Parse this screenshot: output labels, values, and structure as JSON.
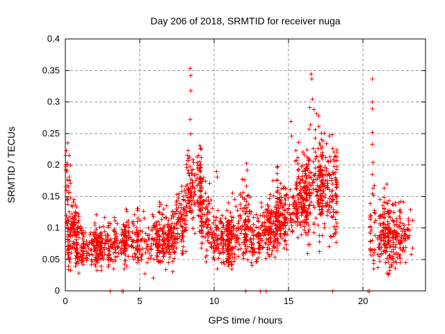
{
  "page": {
    "background": "#ffffff"
  },
  "chart_data": {
    "type": "scatter",
    "title": "Day 206 of 2018, SRMTID for receiver nuga",
    "xlabel": "GPS time / hours",
    "ylabel": "SRMTID / TECUs",
    "xlim": [
      0,
      24.2
    ],
    "ylim": [
      0,
      0.4
    ],
    "xticks": [
      [
        0,
        "0"
      ],
      [
        5,
        "5"
      ],
      [
        10,
        "10"
      ],
      [
        15,
        "15"
      ],
      [
        20,
        "20"
      ]
    ],
    "yticks": [
      [
        0,
        "0"
      ],
      [
        0.05,
        "0.05"
      ],
      [
        0.1,
        "0.1"
      ],
      [
        0.15,
        "0.15"
      ],
      [
        0.2,
        "0.2"
      ],
      [
        0.25,
        "0.25"
      ],
      [
        0.3,
        "0.3"
      ],
      [
        0.35,
        "0.35"
      ],
      [
        0.4,
        "0.4"
      ]
    ],
    "grid": true,
    "grid_color": "#999999",
    "axis_color": "#000000",
    "legend": "none",
    "marker": {
      "shape": "plus",
      "color": "#ff0000",
      "size": 7
    },
    "seed": 2018206,
    "clusters": [
      {
        "x": [
          0.0,
          0.38
        ],
        "n": 26,
        "y_mean": 0.17,
        "y_sd": 0.028,
        "y_min": 0.143,
        "y_max": 0.232,
        "columns": 1
      },
      {
        "x": [
          0.02,
          0.9
        ],
        "n": 70,
        "y_mean": 0.112,
        "y_sd": 0.016,
        "y_min": 0.082,
        "y_max": 0.148,
        "columns": 2
      },
      {
        "x": [
          0.1,
          3.2
        ],
        "n": 330,
        "y_mean": 0.071,
        "y_sd": 0.017,
        "y_min": 0.028,
        "y_max": 0.13,
        "columns": 6
      },
      {
        "x": [
          3.2,
          5.2
        ],
        "n": 190,
        "y_mean": 0.077,
        "y_sd": 0.019,
        "y_min": 0.035,
        "y_max": 0.158,
        "columns": 4
      },
      {
        "x": [
          5.2,
          7.4
        ],
        "n": 240,
        "y_mean": 0.082,
        "y_sd": 0.022,
        "y_min": 0.02,
        "y_max": 0.158,
        "columns": 5
      },
      {
        "x": [
          7.4,
          8.1
        ],
        "n": 90,
        "y_mean": 0.115,
        "y_sd": 0.03,
        "y_min": 0.055,
        "y_max": 0.19,
        "columns": 2
      },
      {
        "x": [
          8.1,
          9.1
        ],
        "n": 150,
        "y_mean": 0.163,
        "y_sd": 0.035,
        "y_min": 0.09,
        "y_max": 0.235,
        "columns": 3
      },
      {
        "x": [
          9.1,
          9.65
        ],
        "n": 75,
        "y_mean": 0.115,
        "y_sd": 0.032,
        "y_min": 0.04,
        "y_max": 0.19,
        "columns": 2
      },
      {
        "x": [
          9.65,
          11.6
        ],
        "n": 255,
        "y_mean": 0.082,
        "y_sd": 0.021,
        "y_min": 0.035,
        "y_max": 0.15,
        "columns": 5
      },
      {
        "x": [
          11.6,
          12.45
        ],
        "n": 105,
        "y_mean": 0.1,
        "y_sd": 0.027,
        "y_min": 0.045,
        "y_max": 0.185,
        "columns": 3
      },
      {
        "x": [
          12.45,
          13.1
        ],
        "n": 70,
        "y_mean": 0.078,
        "y_sd": 0.02,
        "y_min": 0.04,
        "y_max": 0.13,
        "columns": 2
      },
      {
        "x": [
          13.1,
          14.2
        ],
        "n": 140,
        "y_mean": 0.1,
        "y_sd": 0.024,
        "y_min": 0.05,
        "y_max": 0.175,
        "columns": 3
      },
      {
        "x": [
          14.2,
          15.3
        ],
        "n": 150,
        "y_mean": 0.118,
        "y_sd": 0.028,
        "y_min": 0.06,
        "y_max": 0.21,
        "columns": 3
      },
      {
        "x": [
          15.3,
          16.2
        ],
        "n": 170,
        "y_mean": 0.145,
        "y_sd": 0.033,
        "y_min": 0.08,
        "y_max": 0.24,
        "columns": 3
      },
      {
        "x": [
          16.2,
          17.3
        ],
        "n": 180,
        "y_mean": 0.17,
        "y_sd": 0.042,
        "y_min": 0.055,
        "y_max": 0.275,
        "columns": 3
      },
      {
        "x": [
          17.3,
          18.2
        ],
        "n": 120,
        "y_mean": 0.165,
        "y_sd": 0.045,
        "y_min": 0.07,
        "y_max": 0.26,
        "columns": 2
      },
      {
        "x": [
          20.45,
          23.3
        ],
        "n": 300,
        "y_mean": 0.09,
        "y_sd": 0.026,
        "y_min": 0.025,
        "y_max": 0.165,
        "columns": 0,
        "x_gauss": [
          21.75,
          0.75
        ]
      }
    ],
    "outlier_points": [
      [
        0.12,
        0.235
      ],
      [
        8.38,
        0.354
      ],
      [
        8.42,
        0.343
      ],
      [
        8.39,
        0.318
      ],
      [
        8.36,
        0.273
      ],
      [
        8.4,
        0.25
      ],
      [
        10.12,
        0.19
      ],
      [
        10.17,
        0.181
      ],
      [
        11.22,
        0.156
      ],
      [
        11.88,
        0.178
      ],
      [
        12.15,
        0.203
      ],
      [
        12.21,
        0.192
      ],
      [
        13.92,
        0.176
      ],
      [
        15.12,
        0.27
      ],
      [
        15.2,
        0.246
      ],
      [
        16.5,
        0.345
      ],
      [
        16.55,
        0.337
      ],
      [
        16.57,
        0.305
      ],
      [
        16.42,
        0.292
      ],
      [
        16.68,
        0.288
      ],
      [
        16.88,
        0.282
      ],
      [
        17.02,
        0.278
      ],
      [
        17.72,
        0.246
      ],
      [
        20.6,
        0.337
      ],
      [
        20.58,
        0.301
      ],
      [
        20.61,
        0.289
      ],
      [
        20.6,
        0.252
      ],
      [
        20.62,
        0.233
      ],
      [
        20.64,
        0.204
      ],
      [
        20.6,
        0.186
      ],
      [
        20.66,
        0.164
      ],
      [
        20.6,
        0.155
      ],
      [
        20.75,
        0.168
      ],
      [
        21.4,
        0.164
      ],
      [
        21.6,
        0.17
      ]
    ],
    "zero_points": [
      3.0,
      3.8,
      3.9,
      12.1,
      13.07,
      13.45,
      17.95,
      20.3,
      20.42
    ]
  }
}
